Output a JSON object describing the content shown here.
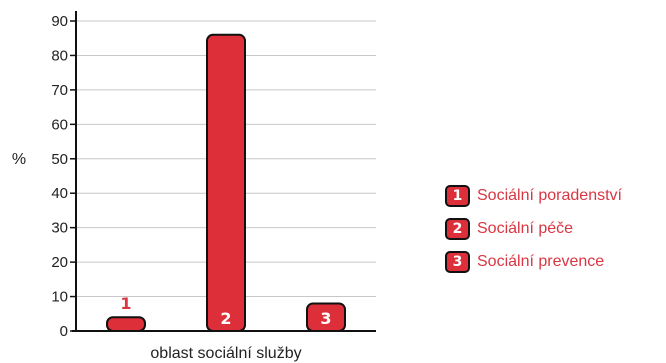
{
  "colors": {
    "bar": "#dd2f3a",
    "outline": "#111111",
    "grid": "#c8c8c8",
    "text_accent": "#d93642"
  },
  "chart_data": {
    "type": "bar",
    "categories": [
      "1",
      "2",
      "3"
    ],
    "values": [
      4,
      86,
      8
    ],
    "xlabel": "oblast sociální služby",
    "ylabel": "%",
    "ylim": [
      0,
      90
    ],
    "yticks": [
      0,
      10,
      20,
      30,
      40,
      50,
      60,
      70,
      80,
      90
    ],
    "grid": true,
    "legend_position": "right",
    "legend": [
      {
        "badge": "1",
        "label": "Sociální poradenství"
      },
      {
        "badge": "2",
        "label": "Sociální péče"
      },
      {
        "badge": "3",
        "label": "Sociální prevence"
      }
    ]
  }
}
